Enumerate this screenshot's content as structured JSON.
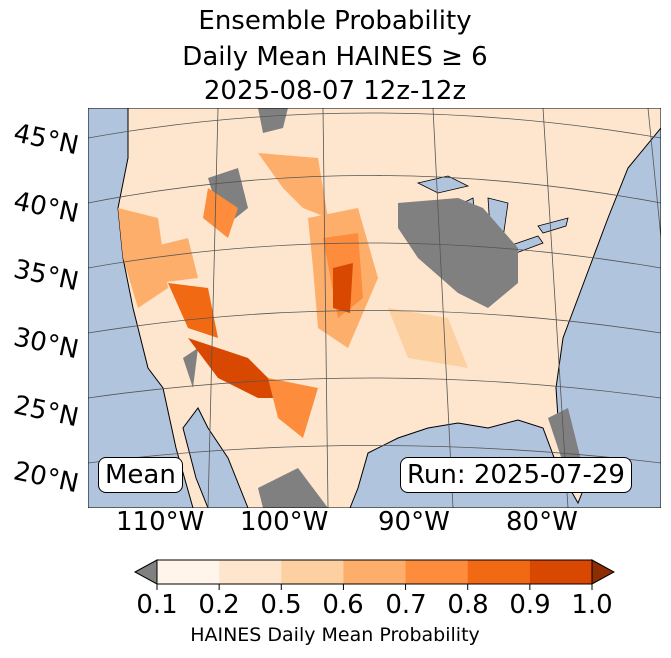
{
  "title": {
    "line1": "Ensemble Probability",
    "line2": "Daily Mean HAINES ≥ 6",
    "line3": "2025-08-07 12z-12z"
  },
  "map": {
    "lat_labels": [
      "45°N",
      "40°N",
      "35°N",
      "30°N",
      "25°N",
      "20°N"
    ],
    "lon_labels": [
      "110°W",
      "100°W",
      "90°W",
      "80°W"
    ],
    "mean_label": "Mean",
    "run_label": "Run: 2025-07-29"
  },
  "colorbar": {
    "ticks": [
      "0.1",
      "0.2",
      "0.5",
      "0.6",
      "0.7",
      "0.8",
      "0.9",
      "1.0"
    ],
    "label": "HAINES Daily Mean Probability",
    "colors": [
      "#fff5eb",
      "#fee6ce",
      "#fdd0a2",
      "#fdae6b",
      "#fd8d3c",
      "#f16913",
      "#d94801"
    ],
    "under_color": "#808080",
    "over_color": "#8c2d04"
  },
  "colors": {
    "ocean": "#b0c4de",
    "land": "#fee6ce"
  }
}
